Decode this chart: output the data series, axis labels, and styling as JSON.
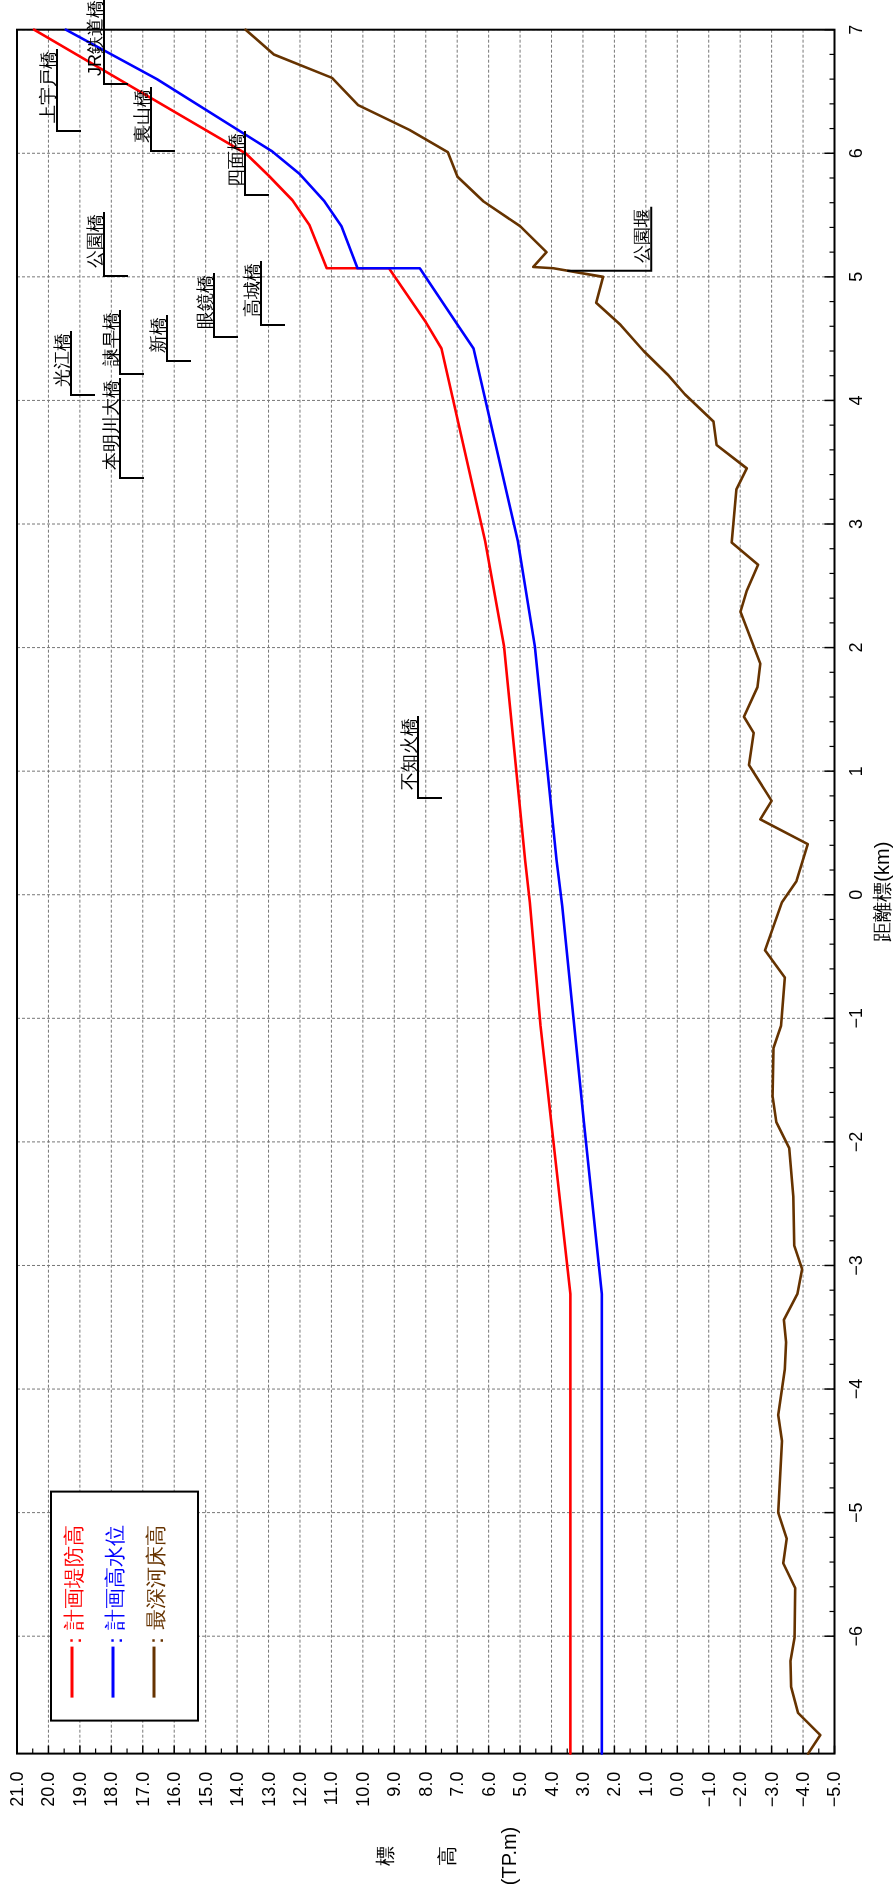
{
  "chart_data": {
    "type": "line",
    "xlabel": "標高(TP.m)",
    "ylabel": "距離標(km)",
    "ylim": [
      -6.95,
      7
    ],
    "yticks": [
      {
        "value": -6,
        "label": "−6"
      },
      {
        "value": -5,
        "label": "−5"
      },
      {
        "value": -4,
        "label": "−4"
      },
      {
        "value": -3,
        "label": "−3"
      },
      {
        "value": -2,
        "label": "−2"
      },
      {
        "value": -1,
        "label": "−1"
      },
      0,
      1,
      2,
      3,
      4,
      5,
      6,
      7
    ],
    "xlim": [
      21,
      -5
    ],
    "xticks": [
      {
        "value": 21,
        "label": "21.0"
      },
      {
        "value": 20,
        "label": "20.0"
      },
      {
        "value": 19,
        "label": "19.0"
      },
      {
        "value": 18,
        "label": "18.0"
      },
      {
        "value": 17,
        "label": "17.0"
      },
      {
        "value": 16,
        "label": "16.0"
      },
      {
        "value": 15,
        "label": "15.0"
      },
      {
        "value": 14,
        "label": "14.0"
      },
      {
        "value": 13,
        "label": "13.0"
      },
      {
        "value": 12,
        "label": "12.0"
      },
      {
        "value": 11,
        "label": "11.0"
      },
      {
        "value": 10,
        "label": "10.0"
      },
      {
        "value": 9,
        "label": "9.0"
      },
      {
        "value": 8,
        "label": "8.0"
      },
      {
        "value": 7,
        "label": "7.0"
      },
      {
        "value": 6,
        "label": "6.0"
      },
      {
        "value": 5,
        "label": "5.0"
      },
      {
        "value": 4,
        "label": "4.0"
      },
      {
        "value": 3,
        "label": "3.0"
      },
      {
        "value": 2,
        "label": "2.0"
      },
      {
        "value": 1,
        "label": "1.0"
      },
      {
        "value": 0,
        "label": "0.0"
      },
      {
        "value": -1,
        "label": "−1.0"
      },
      {
        "value": -2,
        "label": "−2.0"
      },
      {
        "value": -3,
        "label": "−3.0"
      },
      {
        "value": -4,
        "label": "−4.0"
      },
      {
        "value": -5,
        "label": "−5.0"
      }
    ],
    "grid": true,
    "legend": "bottom left",
    "series": [
      {
        "name": "：計画堤防高",
        "color": "#ff0000",
        "values": [
          -6.95,
          -3.23,
          -1.06,
          -0.06,
          0.28,
          2.01,
          2.86,
          4.42,
          4.63,
          5.07,
          5.07,
          5.42,
          5.62,
          5.82,
          6.0,
          7.0
        ],
        "x": [
          3.4,
          3.4,
          4.35,
          4.69,
          4.84,
          5.51,
          6.11,
          7.5,
          7.99,
          9.17,
          11.15,
          11.7,
          12.24,
          13.0,
          13.73,
          20.46
        ]
      },
      {
        "name": "：計画高水位",
        "color": "#0000ff",
        "values": [
          -6.95,
          -3.23,
          -1.84,
          -0.09,
          0.28,
          2.01,
          2.86,
          4.42,
          4.62,
          5.07,
          5.07,
          5.41,
          5.61,
          5.83,
          6.02,
          6.6,
          7.0
        ],
        "x": [
          2.4,
          2.4,
          2.97,
          3.66,
          3.84,
          4.53,
          5.07,
          6.48,
          7.01,
          8.19,
          10.17,
          10.68,
          11.22,
          12.0,
          12.91,
          16.55,
          19.45
        ]
      },
      {
        "name": "：最深河床高",
        "color": "#663300",
        "values": [
          -6.95,
          -6.8,
          -6.62,
          -6.41,
          -6.2,
          -6.01,
          -5.61,
          -5.41,
          -5.21,
          -5.0,
          -4.42,
          -4.21,
          -3.84,
          -3.62,
          -3.44,
          -3.23,
          -3.03,
          -2.84,
          -2.44,
          -2.05,
          -1.84,
          -1.63,
          -1.24,
          -1.06,
          -0.67,
          -0.45,
          -0.06,
          0.11,
          0.41,
          0.61,
          0.76,
          1.05,
          1.31,
          1.44,
          1.68,
          1.87,
          2.29,
          2.46,
          2.67,
          2.85,
          3.28,
          3.45,
          3.64,
          3.83,
          4.05,
          4.21,
          4.4,
          4.61,
          4.79,
          5.0,
          5.07,
          5.08,
          5.2,
          5.41,
          5.61,
          5.81,
          6.01,
          6.19,
          6.39,
          6.61,
          6.8,
          7.0
        ],
        "x": [
          -4.16,
          -4.55,
          -3.84,
          -3.62,
          -3.6,
          -3.73,
          -3.75,
          -3.37,
          -3.48,
          -3.21,
          -3.33,
          -3.21,
          -3.42,
          -3.46,
          -3.39,
          -3.82,
          -3.97,
          -3.72,
          -3.69,
          -3.56,
          -3.15,
          -3.03,
          -3.06,
          -3.3,
          -3.42,
          -2.79,
          -3.33,
          -3.79,
          -4.15,
          -2.64,
          -3.0,
          -2.28,
          -2.43,
          -2.12,
          -2.55,
          -2.64,
          -2.01,
          -2.21,
          -2.57,
          -1.73,
          -1.88,
          -2.21,
          -1.25,
          -1.15,
          -0.24,
          0.31,
          1.07,
          1.8,
          2.58,
          2.36,
          3.94,
          4.58,
          4.16,
          5.0,
          6.16,
          6.99,
          7.3,
          8.52,
          10.15,
          10.98,
          12.83,
          13.73
        ]
      }
    ],
    "annotations": [
      "上宇戸橋",
      "JR鉄道橋",
      "裏山橋",
      "四面橋",
      "公園橋",
      {
        "text": "公園堰",
        "x": 3.5,
        "y": 5.05
      },
      "高城橋",
      "眼鏡橋",
      "新橋",
      "諫早橋",
      "光江橋",
      "本明川大橋",
      "不知火橋"
    ]
  }
}
